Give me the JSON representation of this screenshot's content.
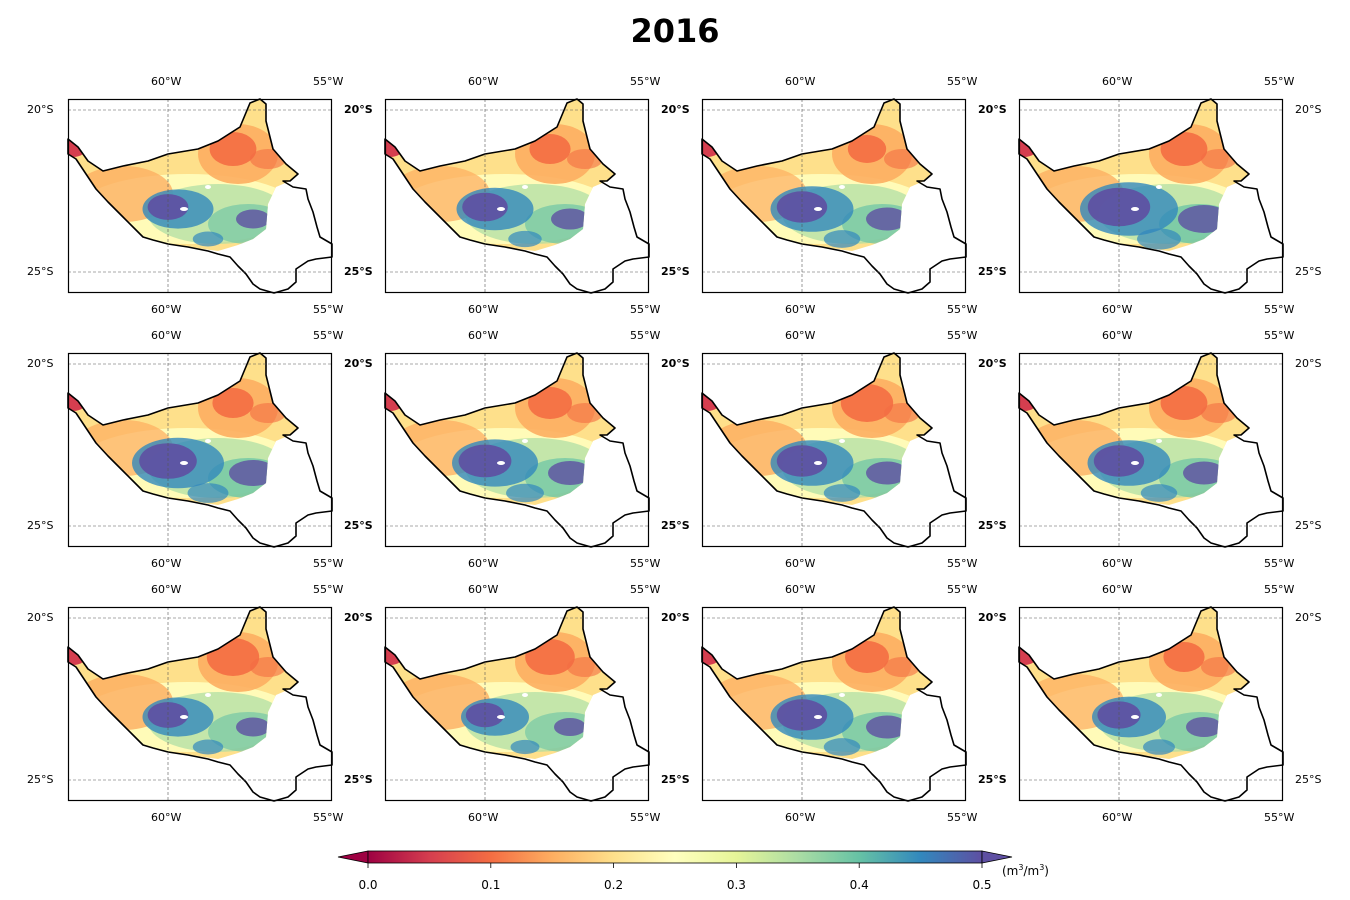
{
  "title": "2016",
  "map": {
    "lon_ticks": [
      "60°W",
      "55°W"
    ],
    "lat_ticks": [
      "20°S",
      "25°S"
    ],
    "grid_rows": 3,
    "grid_cols": 4,
    "panels": [
      {
        "wet": 0.35,
        "dry": 0.55
      },
      {
        "wet": 0.45,
        "dry": 0.45
      },
      {
        "wet": 0.55,
        "dry": 0.4
      },
      {
        "wet": 0.8,
        "dry": 0.55
      },
      {
        "wet": 0.7,
        "dry": 0.45
      },
      {
        "wet": 0.6,
        "dry": 0.5
      },
      {
        "wet": 0.55,
        "dry": 0.65
      },
      {
        "wet": 0.55,
        "dry": 0.55
      },
      {
        "wet": 0.35,
        "dry": 0.65
      },
      {
        "wet": 0.3,
        "dry": 0.6
      },
      {
        "wet": 0.55,
        "dry": 0.5
      },
      {
        "wet": 0.4,
        "dry": 0.45
      }
    ]
  },
  "colorbar": {
    "ticks": [
      "0.0",
      "0.1",
      "0.2",
      "0.3",
      "0.4",
      "0.5"
    ],
    "unit_base": "(m",
    "unit_exp1": "3",
    "unit_mid": "/m",
    "unit_exp2": "3",
    "unit_end": ")",
    "colors": [
      "#9e0142",
      "#d53e4f",
      "#f46d43",
      "#fdae61",
      "#fee08b",
      "#ffffbf",
      "#e6f598",
      "#abdda4",
      "#66c2a5",
      "#3288bd",
      "#5e4fa2"
    ]
  }
}
